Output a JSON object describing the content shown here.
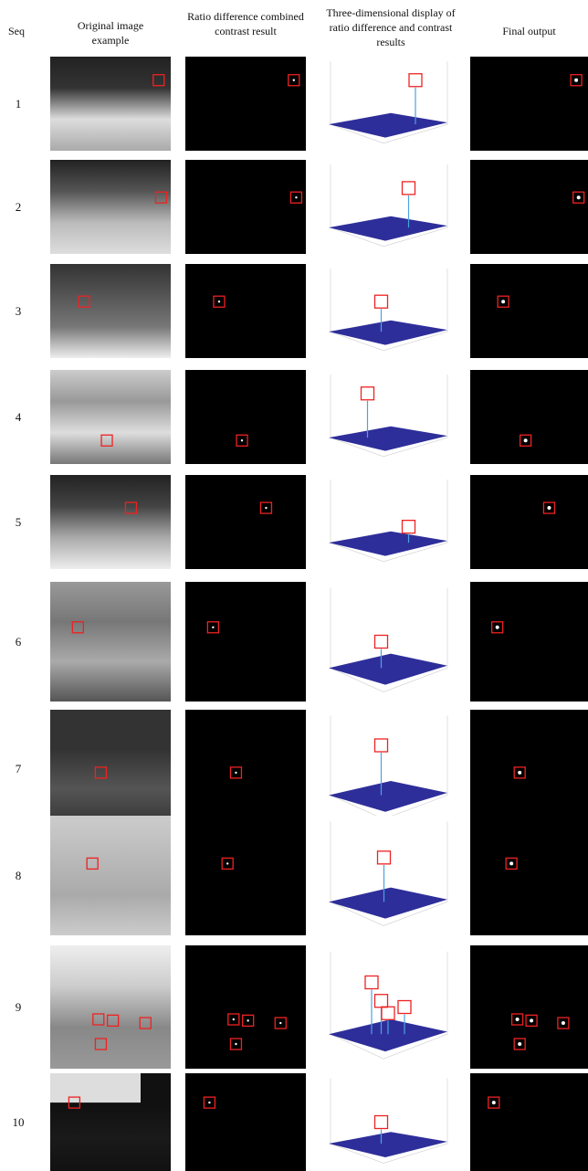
{
  "header": {
    "seq": "Seq",
    "original": "Original image example",
    "ratio": "Ratio difference combined contrast result",
    "display": "Three-dimensional display of ratio difference and contrast results",
    "final": "Final output"
  },
  "rows": [
    {
      "seq": "1"
    },
    {
      "seq": "2"
    },
    {
      "seq": "3"
    },
    {
      "seq": "4"
    },
    {
      "seq": "5"
    },
    {
      "seq": "6"
    },
    {
      "seq": "7"
    },
    {
      "seq": "8"
    },
    {
      "seq": "9"
    },
    {
      "seq": "10"
    }
  ]
}
